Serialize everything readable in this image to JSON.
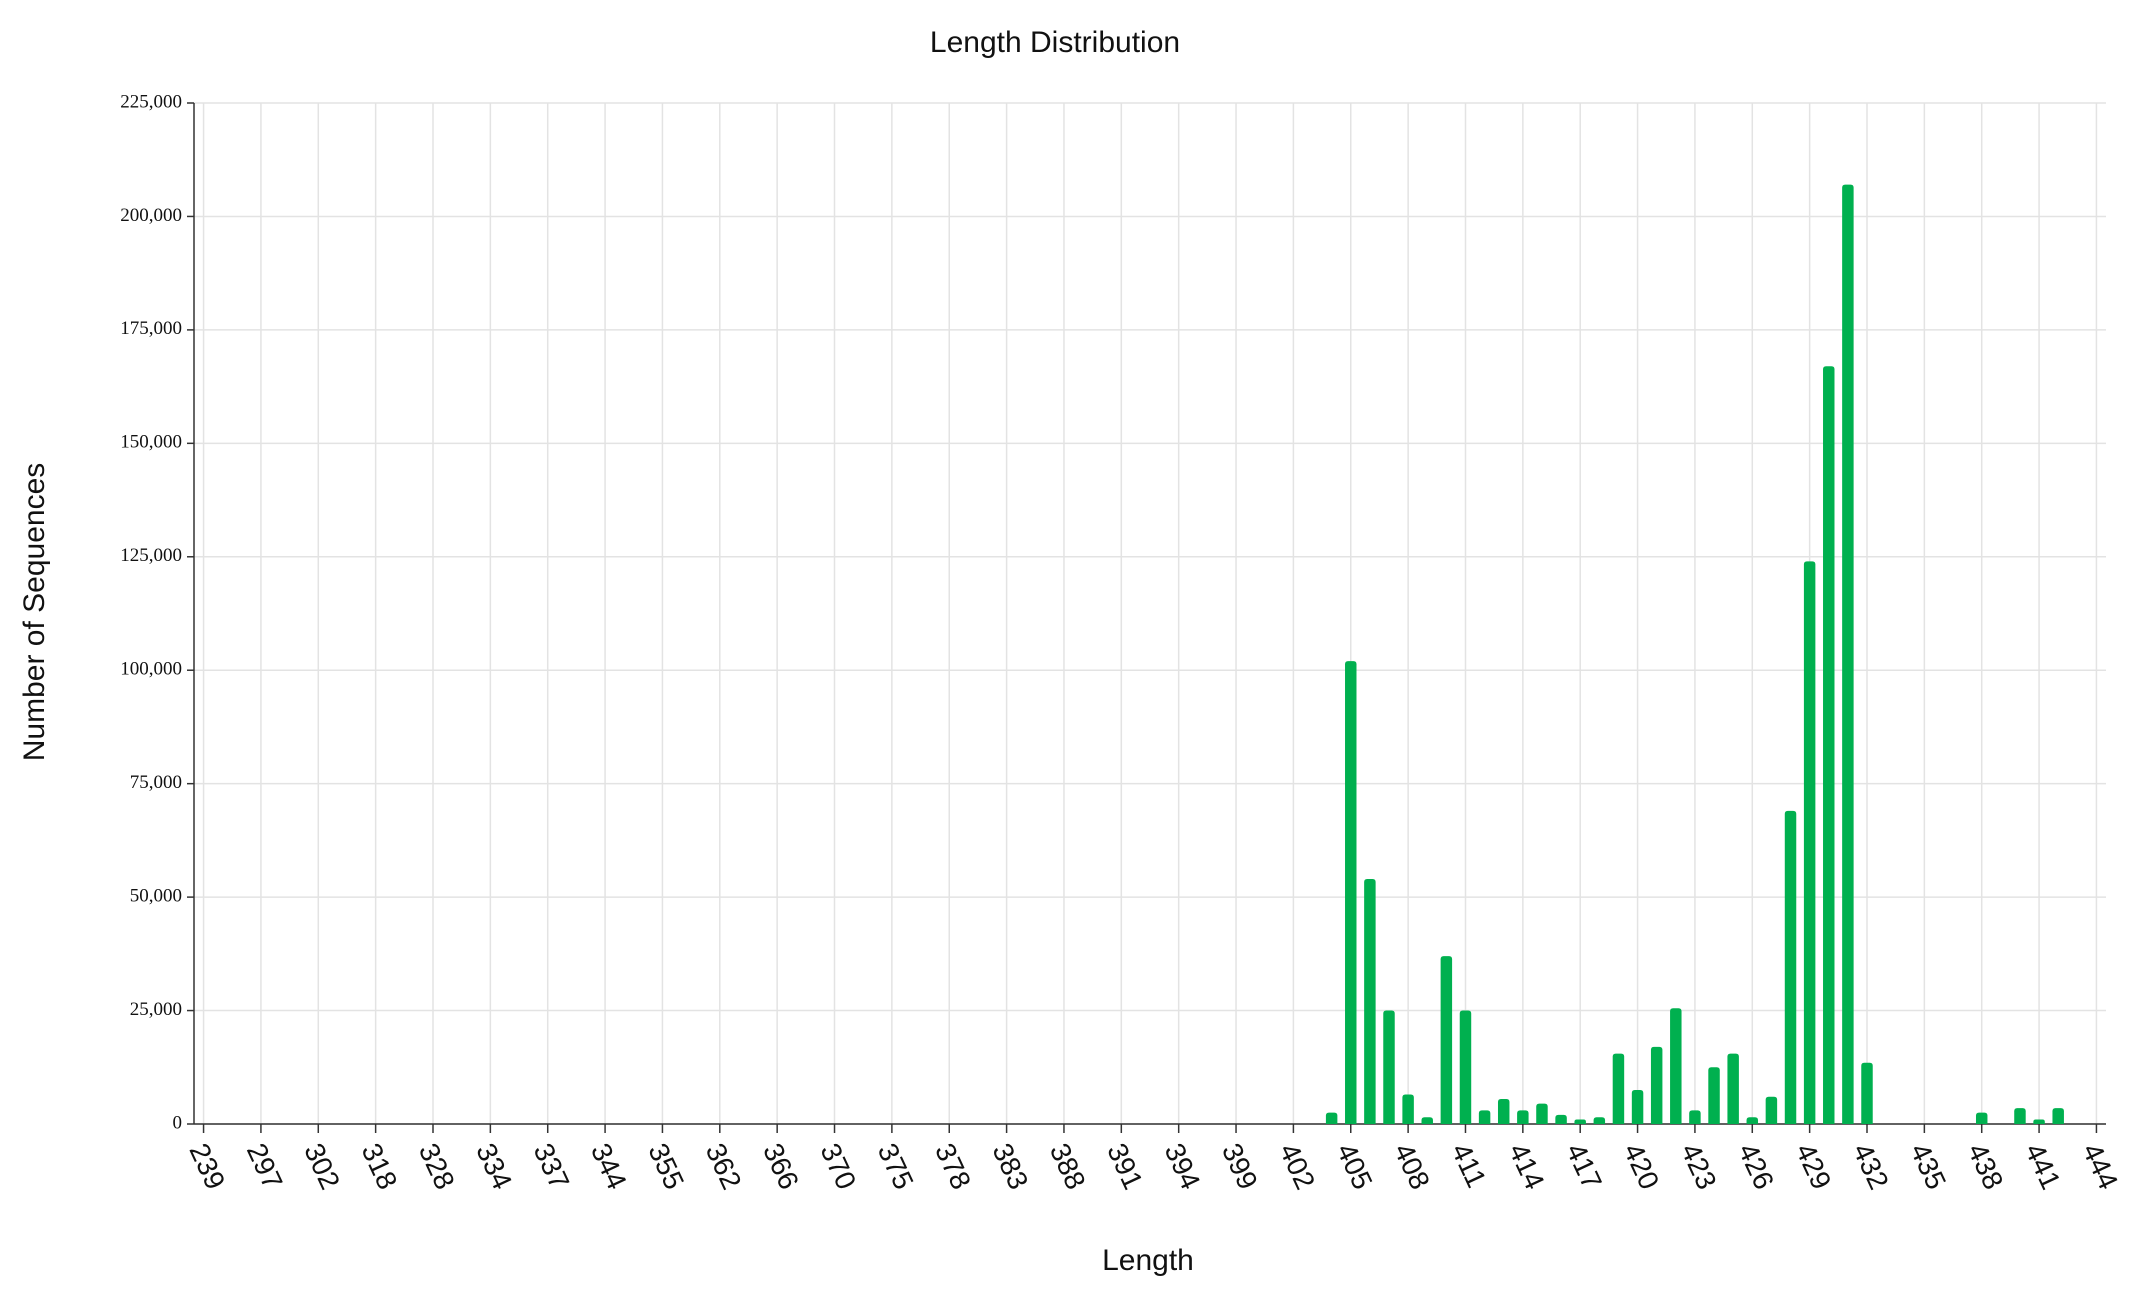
{
  "chart_data": {
    "type": "bar",
    "title": "Length Distribution",
    "xlabel": "Length",
    "ylabel": "Number of Sequences",
    "categories": [
      "239",
      null,
      null,
      "297",
      null,
      null,
      "302",
      null,
      null,
      "318",
      null,
      null,
      "328",
      null,
      null,
      "334",
      null,
      null,
      "337",
      null,
      null,
      "344",
      null,
      null,
      "355",
      null,
      null,
      "362",
      null,
      null,
      "366",
      null,
      null,
      "370",
      null,
      null,
      "375",
      null,
      null,
      "378",
      null,
      null,
      "383",
      null,
      null,
      "388",
      null,
      null,
      "391",
      null,
      null,
      "394",
      null,
      null,
      "399",
      null,
      null,
      "402",
      null,
      null,
      "405",
      null,
      null,
      "408",
      null,
      null,
      "411",
      null,
      null,
      "414",
      null,
      null,
      "417",
      null,
      null,
      "420",
      null,
      null,
      "423",
      null,
      null,
      "426",
      null,
      null,
      "429",
      null,
      null,
      "432",
      null,
      null,
      "435",
      null,
      null,
      "438",
      null,
      null,
      "441",
      null,
      null,
      "444"
    ],
    "values": [
      0,
      0,
      0,
      0,
      0,
      0,
      0,
      0,
      0,
      0,
      0,
      0,
      0,
      0,
      0,
      0,
      0,
      0,
      0,
      0,
      0,
      0,
      0,
      0,
      0,
      0,
      0,
      0,
      0,
      0,
      0,
      0,
      0,
      0,
      0,
      0,
      0,
      0,
      0,
      0,
      0,
      0,
      0,
      0,
      0,
      0,
      0,
      0,
      0,
      0,
      0,
      0,
      0,
      0,
      0,
      0,
      0,
      0,
      0,
      2500,
      102000,
      54000,
      25000,
      6500,
      1500,
      37000,
      25000,
      3000,
      5500,
      3000,
      4500,
      2000,
      1000,
      1500,
      15500,
      7500,
      17000,
      25500,
      3000,
      12500,
      15500,
      1500,
      6000,
      69000,
      124000,
      167000,
      207000,
      13500,
      0,
      0,
      0,
      0,
      0,
      2500,
      0,
      3500,
      1000,
      3500,
      0,
      0
    ],
    "color": "#00b04f",
    "ylim": [
      0,
      225000
    ],
    "yticks": [
      0,
      {
        "value": 25000,
        "label": "25,000"
      },
      {
        "value": 50000,
        "label": "50,000"
      },
      {
        "value": 75000,
        "label": "75,000"
      },
      {
        "value": 100000,
        "label": "100,000"
      },
      {
        "value": 125000,
        "label": "125,000"
      },
      {
        "value": 150000,
        "label": "150,000"
      },
      {
        "value": 175000,
        "label": "175,000"
      },
      {
        "value": 200000,
        "label": "200,000"
      },
      {
        "value": 225000,
        "label": "225,000"
      }
    ],
    "grid": true
  }
}
